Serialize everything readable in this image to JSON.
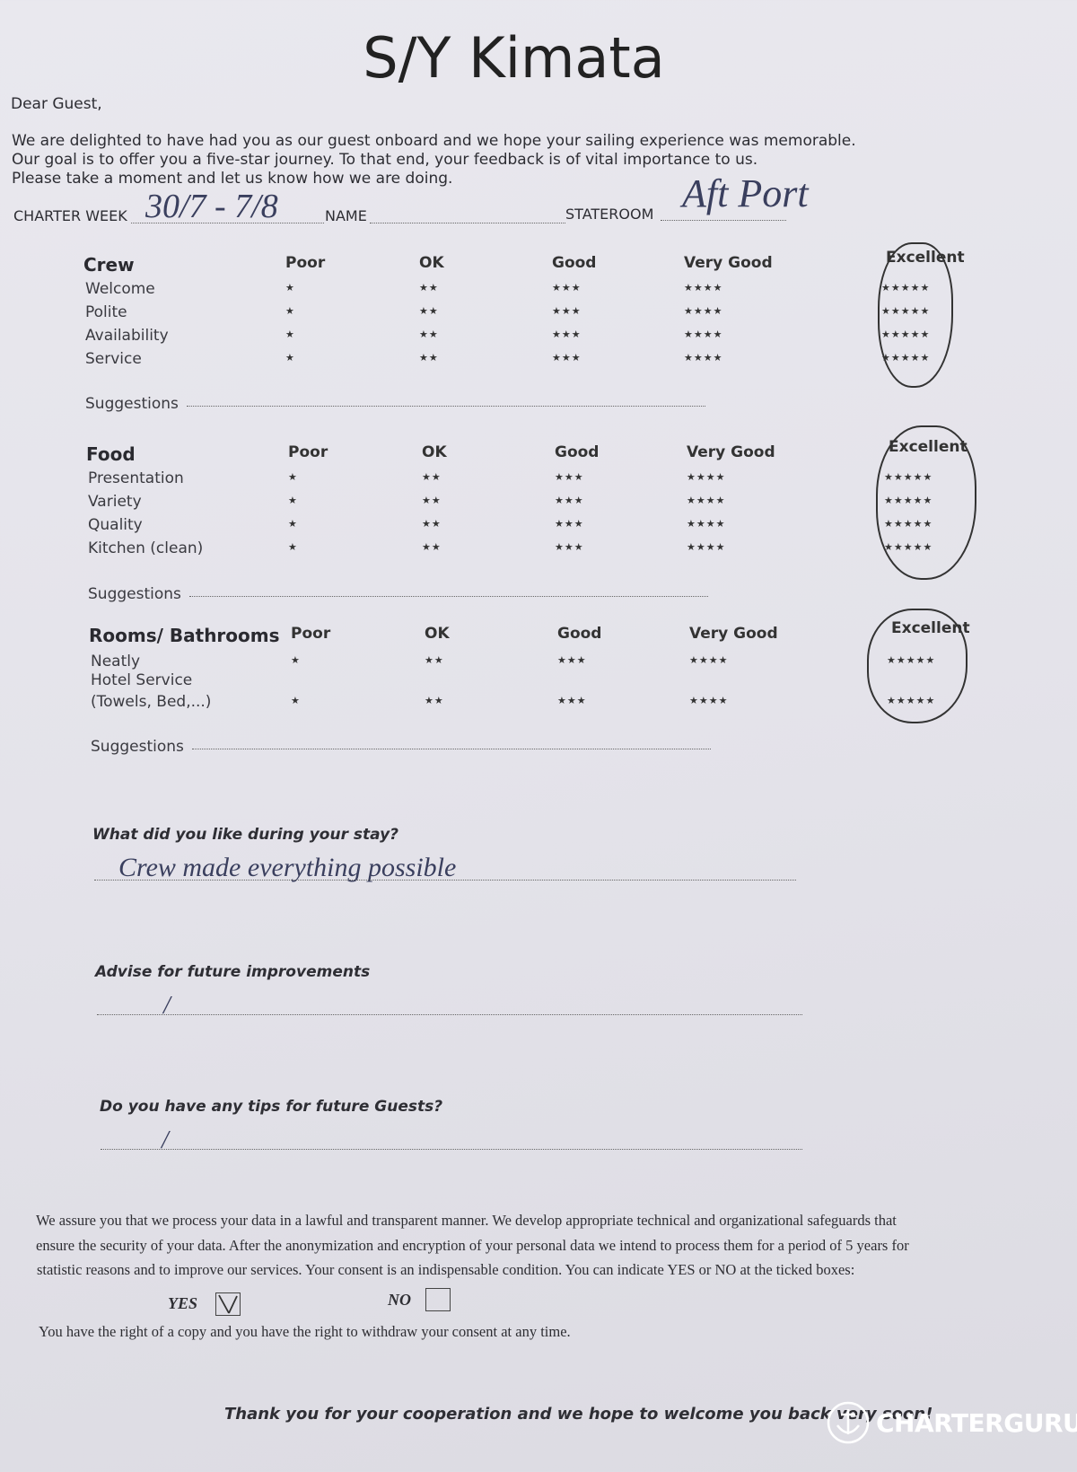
{
  "title": "S/Y Kimata",
  "greeting": "Dear Guest,",
  "intro": [
    "We are delighted to have had you as our guest onboard and we hope your sailing experience was memorable.",
    "Our goal is to offer you a five-star journey. To that end, your feedback is of vital importance to us.",
    "Please take a moment and let us know how we are doing."
  ],
  "fields": {
    "charter_week_label": "CHARTER WEEK",
    "charter_week_value": "30/7 - 7/8",
    "name_label": "NAME",
    "name_value": "",
    "stateroom_label": "STATEROOM",
    "stateroom_value": "Aft Port"
  },
  "rating_columns": [
    "Poor",
    "OK",
    "Good",
    "Very Good",
    "Excellent"
  ],
  "rating_stars": [
    "★",
    "★★",
    "★★★",
    "★★★★",
    "★★★★★"
  ],
  "sections": [
    {
      "title": "Crew",
      "rows": [
        "Welcome",
        "Polite",
        "Availability",
        "Service"
      ],
      "selected": [
        5,
        5,
        5,
        5
      ],
      "suggestions_label": "Suggestions"
    },
    {
      "title": "Food",
      "rows": [
        "Presentation",
        "Variety",
        "Quality",
        "Kitchen (clean)"
      ],
      "selected": [
        5,
        5,
        5,
        5
      ],
      "suggestions_label": "Suggestions"
    },
    {
      "title": "Rooms/ Bathrooms",
      "rows": [
        "Neatly",
        "Hotel Service (Towels, Bed,...)"
      ],
      "row_lines": [
        [
          "Neatly"
        ],
        [
          "Hotel Service",
          "(Towels, Bed,...)"
        ]
      ],
      "selected": [
        5,
        5
      ],
      "suggestions_label": "Suggestions"
    }
  ],
  "questions": [
    {
      "label": "What did you like during your stay?",
      "answer": "Crew made everything possible"
    },
    {
      "label": "Advise for future improvements",
      "answer": "/"
    },
    {
      "label": "Do you have any tips for future Guests?",
      "answer": "/"
    }
  ],
  "privacy": [
    "We assure you that we process your data in a lawful and transparent manner. We develop appropriate technical and organizational safeguards that",
    "ensure the security of your data. After the anonymization and encryption of your personal data we intend to process them for a period of 5 years for",
    "statistic reasons and to improve our services. Your consent is an indispensable condition. You can indicate YES or NO at the ticked boxes:"
  ],
  "consent": {
    "yes_label": "YES",
    "yes_checked": true,
    "no_label": "NO",
    "no_checked": false
  },
  "rights": "You have the right of a copy and you have the right to withdraw your consent at any time.",
  "thanks": "Thank you for your cooperation and we hope to welcome you back very soon!",
  "watermark": "CHARTERGURU"
}
